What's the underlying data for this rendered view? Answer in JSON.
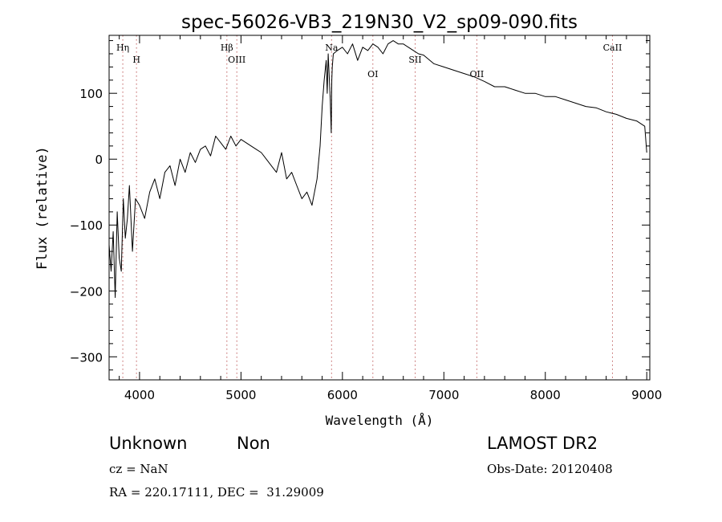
{
  "chart_data": {
    "type": "line",
    "title": "spec-56026-VB3_219N30_V2_sp09-090.fits",
    "xlabel": "Wavelength (Å)",
    "ylabel": "Flux (relative)",
    "xlim": [
      3700,
      9030
    ],
    "ylim": [
      -335,
      188
    ],
    "xticks": [
      4000,
      5000,
      6000,
      7000,
      8000,
      9000
    ],
    "yticks": [
      -300,
      -200,
      -100,
      0,
      100
    ],
    "series": [
      {
        "x": [
          3700,
          3720,
          3740,
          3760,
          3780,
          3800,
          3820,
          3840,
          3860,
          3880,
          3900,
          3930,
          3960,
          4000,
          4050,
          4100,
          4150,
          4200,
          4250,
          4300,
          4350,
          4400,
          4450,
          4500,
          4550,
          4600,
          4650,
          4700,
          4750,
          4800,
          4850,
          4900,
          4950,
          5000,
          5050,
          5100,
          5150,
          5200,
          5250,
          5300,
          5350,
          5400,
          5450,
          5500,
          5550,
          5600,
          5650,
          5700,
          5750,
          5780,
          5800,
          5820,
          5840,
          5850,
          5860,
          5880,
          5890,
          5895,
          5900,
          5910,
          5950,
          6000,
          6050,
          6100,
          6150,
          6200,
          6250,
          6300,
          6350,
          6400,
          6450,
          6500,
          6550,
          6600,
          6650,
          6700,
          6750,
          6800,
          6900,
          7000,
          7100,
          7200,
          7300,
          7400,
          7500,
          7600,
          7700,
          7800,
          7900,
          8000,
          8100,
          8200,
          8300,
          8400,
          8500,
          8600,
          8700,
          8800,
          8900,
          8980,
          9000
        ],
        "y": [
          -130,
          -170,
          -110,
          -210,
          -80,
          -150,
          -170,
          -60,
          -120,
          -90,
          -40,
          -140,
          -60,
          -70,
          -90,
          -50,
          -30,
          -60,
          -20,
          -10,
          -40,
          0,
          -20,
          10,
          -5,
          15,
          20,
          5,
          35,
          25,
          15,
          35,
          20,
          30,
          25,
          20,
          15,
          10,
          0,
          -10,
          -20,
          10,
          -30,
          -20,
          -40,
          -60,
          -50,
          -70,
          -30,
          20,
          80,
          120,
          150,
          100,
          160,
          90,
          40,
          120,
          140,
          160,
          165,
          170,
          160,
          175,
          150,
          170,
          165,
          175,
          170,
          160,
          175,
          180,
          175,
          175,
          170,
          165,
          160,
          158,
          145,
          140,
          135,
          130,
          125,
          118,
          110,
          110,
          105,
          100,
          100,
          95,
          95,
          90,
          85,
          80,
          78,
          72,
          68,
          62,
          58,
          50,
          10
        ]
      }
    ],
    "line_markers": [
      {
        "label": "Hη",
        "x": 3835
      },
      {
        "label": "H",
        "x": 3970
      },
      {
        "label": "Hβ",
        "x": 4861
      },
      {
        "label": "OIII",
        "x": 4959
      },
      {
        "label": "Na",
        "x": 5893
      },
      {
        "label": "OI",
        "x": 6300
      },
      {
        "label": "SII",
        "x": 6717
      },
      {
        "label": "OII",
        "x": 7325
      },
      {
        "label": "CaII",
        "x": 8662
      }
    ]
  },
  "info": {
    "class": "Unknown",
    "subclass": "Non",
    "survey": "LAMOST DR2",
    "cz": "cz = NaN",
    "obs_date": "Obs-Date: 20120408",
    "coords": "RA = 220.17111, DEC =  31.29009"
  },
  "colors": {
    "line": "#000000",
    "marker": "#c06060",
    "text": "#000000"
  }
}
